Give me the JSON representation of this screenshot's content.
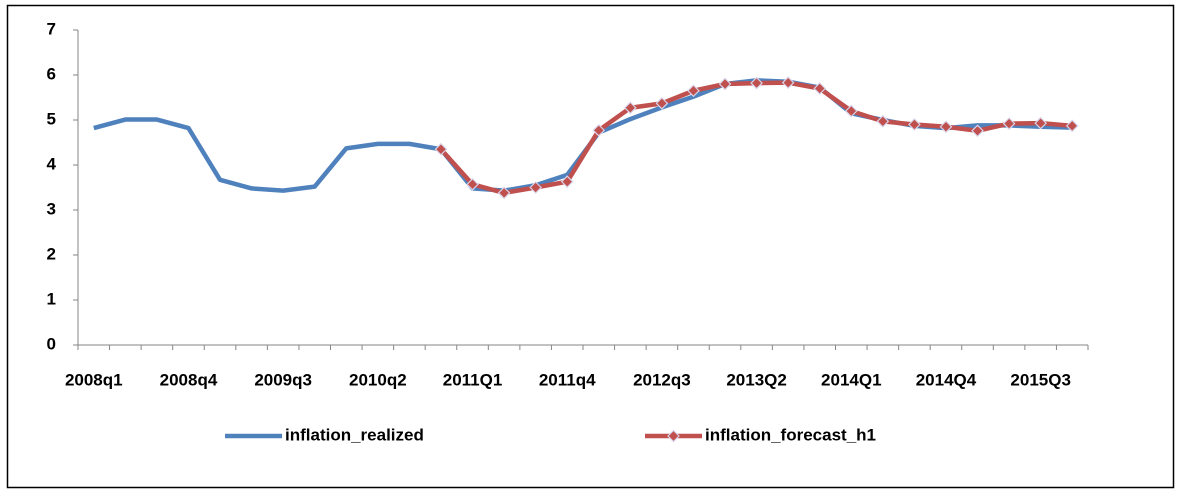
{
  "chart_data": {
    "type": "line",
    "categories": [
      "2008q1",
      null,
      null,
      "2008q4",
      null,
      null,
      "2009q3",
      null,
      null,
      "2010q2",
      null,
      null,
      "2011Q1",
      null,
      null,
      "2011q4",
      null,
      null,
      "2012q3",
      null,
      null,
      "2013Q2",
      null,
      null,
      "2014Q1",
      null,
      null,
      "2014Q4",
      null,
      null,
      "2015Q3",
      null
    ],
    "series": [
      {
        "name": "inflation_realized",
        "color": "#4f81bd",
        "marker": false,
        "values": [
          4.82,
          5.01,
          5.01,
          4.82,
          3.67,
          3.48,
          3.43,
          3.52,
          4.37,
          4.47,
          4.47,
          4.35,
          3.48,
          3.43,
          3.55,
          3.78,
          4.72,
          5.02,
          5.28,
          5.52,
          5.8,
          5.88,
          5.85,
          5.72,
          5.15,
          5.0,
          4.87,
          4.82,
          4.88,
          4.88,
          4.85,
          4.83
        ]
      },
      {
        "name": "inflation_forecast_h1",
        "color": "#c0504d",
        "marker": true,
        "values": [
          null,
          null,
          null,
          null,
          null,
          null,
          null,
          null,
          null,
          null,
          null,
          4.35,
          3.57,
          3.38,
          3.5,
          3.63,
          4.77,
          5.27,
          5.37,
          5.65,
          5.8,
          5.82,
          5.83,
          5.7,
          5.2,
          4.97,
          4.9,
          4.85,
          4.76,
          4.92,
          4.93,
          4.87
        ]
      }
    ],
    "ylim": [
      0,
      7
    ],
    "yticks": [
      0,
      1,
      2,
      3,
      4,
      5,
      6,
      7
    ],
    "grid": false,
    "legend": "bottom"
  }
}
